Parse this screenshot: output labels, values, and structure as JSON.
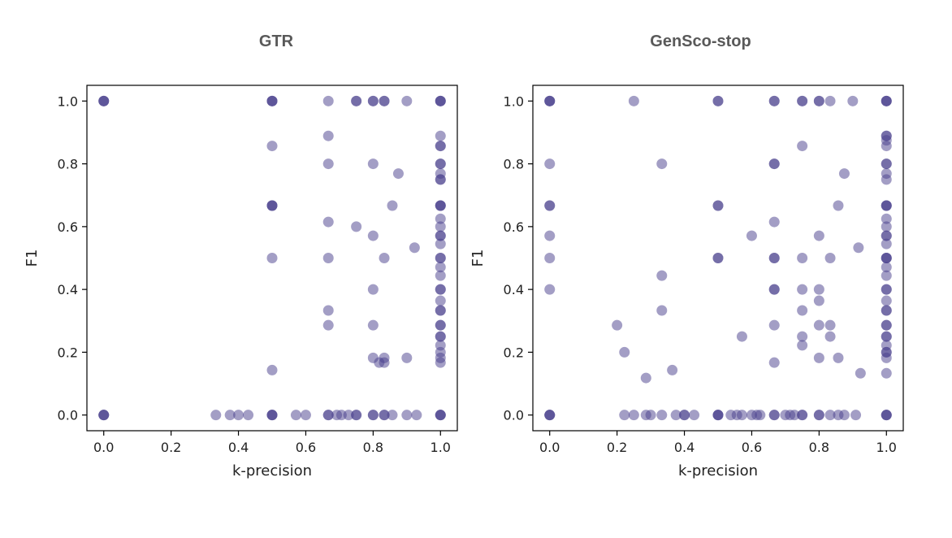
{
  "chart_data": [
    {
      "type": "scatter",
      "title": "GTR",
      "xlabel": "k-precision",
      "ylabel": "F1",
      "xlim": [
        -0.05,
        1.05
      ],
      "ylim": [
        -0.05,
        1.05
      ],
      "xticks": [
        0.0,
        0.2,
        0.4,
        0.6,
        0.8,
        1.0
      ],
      "yticks": [
        0.0,
        0.2,
        0.4,
        0.6,
        0.8,
        1.0
      ],
      "tick_labels": [
        "0.0",
        "0.2",
        "0.4",
        "0.6",
        "0.8",
        "1.0"
      ],
      "grid": false,
      "marker_color": "#483d8b",
      "points": [
        [
          0,
          1
        ],
        [
          0,
          1
        ],
        [
          0,
          1
        ],
        [
          0,
          0
        ],
        [
          0,
          0
        ],
        [
          0,
          0
        ],
        [
          0.333,
          0
        ],
        [
          0.375,
          0
        ],
        [
          0.4,
          0
        ],
        [
          0.429,
          0
        ],
        [
          0.5,
          1
        ],
        [
          0.5,
          1
        ],
        [
          0.5,
          1
        ],
        [
          0.5,
          0.857
        ],
        [
          0.5,
          0.667
        ],
        [
          0.5,
          0.667
        ],
        [
          0.5,
          0.667
        ],
        [
          0.5,
          0.5
        ],
        [
          0.5,
          0.143
        ],
        [
          0.5,
          0
        ],
        [
          0.5,
          0
        ],
        [
          0.5,
          0
        ],
        [
          0.571,
          0
        ],
        [
          0.6,
          0
        ],
        [
          0.667,
          1
        ],
        [
          0.667,
          0.889
        ],
        [
          0.667,
          0.8
        ],
        [
          0.667,
          0.615
        ],
        [
          0.667,
          0.5
        ],
        [
          0.667,
          0.333
        ],
        [
          0.667,
          0.286
        ],
        [
          0.667,
          0
        ],
        [
          0.667,
          0
        ],
        [
          0.692,
          0
        ],
        [
          0.706,
          0
        ],
        [
          0.727,
          0
        ],
        [
          0.75,
          1
        ],
        [
          0.75,
          1
        ],
        [
          0.75,
          0.6
        ],
        [
          0.75,
          0
        ],
        [
          0.75,
          0
        ],
        [
          0.8,
          1
        ],
        [
          0.8,
          1
        ],
        [
          0.8,
          0.8
        ],
        [
          0.8,
          0.571
        ],
        [
          0.8,
          0.4
        ],
        [
          0.8,
          0.286
        ],
        [
          0.8,
          0.182
        ],
        [
          0.8,
          0
        ],
        [
          0.8,
          0
        ],
        [
          0.818,
          0.167
        ],
        [
          0.833,
          1
        ],
        [
          0.833,
          1
        ],
        [
          0.833,
          0.5
        ],
        [
          0.833,
          0.182
        ],
        [
          0.833,
          0.167
        ],
        [
          0.833,
          0
        ],
        [
          0.833,
          0
        ],
        [
          0.857,
          0.667
        ],
        [
          0.857,
          0
        ],
        [
          0.875,
          0.769
        ],
        [
          0.9,
          1
        ],
        [
          0.9,
          0.182
        ],
        [
          0.9,
          0
        ],
        [
          0.923,
          0.533
        ],
        [
          0.929,
          0
        ],
        [
          1,
          1
        ],
        [
          1,
          1
        ],
        [
          1,
          1
        ],
        [
          1,
          0.889
        ],
        [
          1,
          0.857
        ],
        [
          1,
          0.857
        ],
        [
          1,
          0.8
        ],
        [
          1,
          0.8
        ],
        [
          1,
          0.769
        ],
        [
          1,
          0.75
        ],
        [
          1,
          0.75
        ],
        [
          1,
          0.667
        ],
        [
          1,
          0.667
        ],
        [
          1,
          0.667
        ],
        [
          1,
          0.625
        ],
        [
          1,
          0.6
        ],
        [
          1,
          0.571
        ],
        [
          1,
          0.571
        ],
        [
          1,
          0.545
        ],
        [
          1,
          0.5
        ],
        [
          1,
          0.5
        ],
        [
          1,
          0.471
        ],
        [
          1,
          0.444
        ],
        [
          1,
          0.4
        ],
        [
          1,
          0.4
        ],
        [
          1,
          0.364
        ],
        [
          1,
          0.333
        ],
        [
          1,
          0.333
        ],
        [
          1,
          0.286
        ],
        [
          1,
          0.286
        ],
        [
          1,
          0.25
        ],
        [
          1,
          0.25
        ],
        [
          1,
          0.222
        ],
        [
          1,
          0.2
        ],
        [
          1,
          0.182
        ],
        [
          1,
          0.167
        ],
        [
          1,
          0
        ],
        [
          1,
          0
        ],
        [
          1,
          0
        ]
      ]
    },
    {
      "type": "scatter",
      "title": "GenSco-stop",
      "xlabel": "k-precision",
      "ylabel": "F1",
      "xlim": [
        -0.05,
        1.05
      ],
      "ylim": [
        -0.05,
        1.05
      ],
      "xticks": [
        0.0,
        0.2,
        0.4,
        0.6,
        0.8,
        1.0
      ],
      "yticks": [
        0.0,
        0.2,
        0.4,
        0.6,
        0.8,
        1.0
      ],
      "tick_labels": [
        "0.0",
        "0.2",
        "0.4",
        "0.6",
        "0.8",
        "1.0"
      ],
      "grid": false,
      "marker_color": "#483d8b",
      "points": [
        [
          0,
          1
        ],
        [
          0,
          1
        ],
        [
          0,
          1
        ],
        [
          0,
          0.8
        ],
        [
          0,
          0.667
        ],
        [
          0,
          0.667
        ],
        [
          0,
          0.571
        ],
        [
          0,
          0.5
        ],
        [
          0,
          0.4
        ],
        [
          0,
          0
        ],
        [
          0,
          0
        ],
        [
          0,
          0
        ],
        [
          0.2,
          0.286
        ],
        [
          0.222,
          0.2
        ],
        [
          0.222,
          0
        ],
        [
          0.25,
          1
        ],
        [
          0.25,
          0
        ],
        [
          0.286,
          0.118
        ],
        [
          0.286,
          0
        ],
        [
          0.3,
          0
        ],
        [
          0.333,
          0.8
        ],
        [
          0.333,
          0.444
        ],
        [
          0.333,
          0.333
        ],
        [
          0.333,
          0
        ],
        [
          0.364,
          0.143
        ],
        [
          0.375,
          0
        ],
        [
          0.4,
          0
        ],
        [
          0.4,
          0
        ],
        [
          0.429,
          0
        ],
        [
          0.5,
          1
        ],
        [
          0.5,
          1
        ],
        [
          0.5,
          0.667
        ],
        [
          0.5,
          0.667
        ],
        [
          0.5,
          0.5
        ],
        [
          0.5,
          0.5
        ],
        [
          0.5,
          0
        ],
        [
          0.5,
          0
        ],
        [
          0.5,
          0
        ],
        [
          0.538,
          0
        ],
        [
          0.556,
          0
        ],
        [
          0.571,
          0.25
        ],
        [
          0.571,
          0
        ],
        [
          0.6,
          0.571
        ],
        [
          0.6,
          0
        ],
        [
          0.615,
          0
        ],
        [
          0.625,
          0
        ],
        [
          0.667,
          1
        ],
        [
          0.667,
          1
        ],
        [
          0.667,
          0.8
        ],
        [
          0.667,
          0.8
        ],
        [
          0.667,
          0.615
        ],
        [
          0.667,
          0.5
        ],
        [
          0.667,
          0.5
        ],
        [
          0.667,
          0.4
        ],
        [
          0.667,
          0.4
        ],
        [
          0.667,
          0.286
        ],
        [
          0.667,
          0.167
        ],
        [
          0.667,
          0
        ],
        [
          0.667,
          0
        ],
        [
          0.7,
          0
        ],
        [
          0.714,
          0
        ],
        [
          0.727,
          0
        ],
        [
          0.75,
          1
        ],
        [
          0.75,
          1
        ],
        [
          0.75,
          0.857
        ],
        [
          0.75,
          0.5
        ],
        [
          0.75,
          0.4
        ],
        [
          0.75,
          0.333
        ],
        [
          0.75,
          0.25
        ],
        [
          0.75,
          0.222
        ],
        [
          0.75,
          0
        ],
        [
          0.75,
          0
        ],
        [
          0.8,
          1
        ],
        [
          0.8,
          1
        ],
        [
          0.8,
          0.571
        ],
        [
          0.8,
          0.4
        ],
        [
          0.8,
          0.364
        ],
        [
          0.8,
          0.286
        ],
        [
          0.8,
          0.182
        ],
        [
          0.8,
          0
        ],
        [
          0.8,
          0
        ],
        [
          0.833,
          1
        ],
        [
          0.833,
          0.5
        ],
        [
          0.833,
          0.286
        ],
        [
          0.833,
          0.25
        ],
        [
          0.833,
          0
        ],
        [
          0.857,
          0.667
        ],
        [
          0.857,
          0.182
        ],
        [
          0.857,
          0
        ],
        [
          0.875,
          0.769
        ],
        [
          0.875,
          0
        ],
        [
          0.9,
          1
        ],
        [
          0.909,
          0
        ],
        [
          0.917,
          0.533
        ],
        [
          0.923,
          0.133
        ],
        [
          1,
          1
        ],
        [
          1,
          1
        ],
        [
          1,
          1
        ],
        [
          1,
          0.889
        ],
        [
          1,
          0.889
        ],
        [
          1,
          0.875
        ],
        [
          1,
          0.857
        ],
        [
          1,
          0.8
        ],
        [
          1,
          0.8
        ],
        [
          1,
          0.769
        ],
        [
          1,
          0.75
        ],
        [
          1,
          0.667
        ],
        [
          1,
          0.667
        ],
        [
          1,
          0.667
        ],
        [
          1,
          0.625
        ],
        [
          1,
          0.6
        ],
        [
          1,
          0.571
        ],
        [
          1,
          0.571
        ],
        [
          1,
          0.545
        ],
        [
          1,
          0.5
        ],
        [
          1,
          0.5
        ],
        [
          1,
          0.5
        ],
        [
          1,
          0.471
        ],
        [
          1,
          0.444
        ],
        [
          1,
          0.4
        ],
        [
          1,
          0.4
        ],
        [
          1,
          0.364
        ],
        [
          1,
          0.333
        ],
        [
          1,
          0.333
        ],
        [
          1,
          0.286
        ],
        [
          1,
          0.286
        ],
        [
          1,
          0.25
        ],
        [
          1,
          0.25
        ],
        [
          1,
          0.222
        ],
        [
          1,
          0.2
        ],
        [
          1,
          0.2
        ],
        [
          1,
          0.182
        ],
        [
          1,
          0.133
        ],
        [
          1,
          0
        ],
        [
          1,
          0
        ],
        [
          1,
          0
        ]
      ]
    }
  ]
}
